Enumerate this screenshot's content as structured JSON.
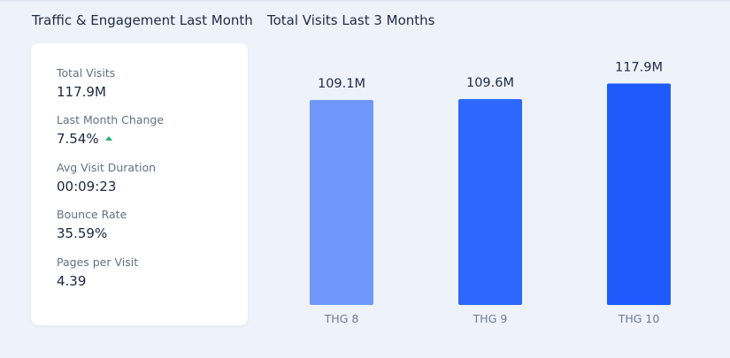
{
  "sections": {
    "left_title": "Traffic & Engagement Last Month",
    "right_title": "Total Visits Last 3 Months"
  },
  "metrics": [
    {
      "label": "Total Visits",
      "value": "117.9M"
    },
    {
      "label": "Last Month Change",
      "value": "7.54%",
      "trend": "up"
    },
    {
      "label": "Avg Visit Duration",
      "value": "00:09:23"
    },
    {
      "label": "Bounce Rate",
      "value": "35.59%"
    },
    {
      "label": "Pages per Visit",
      "value": "4.39"
    }
  ],
  "colors": {
    "page_background": "#eef2fa",
    "card_background": "#ffffff",
    "trend_up": "#1fb37c",
    "bar_light": "#7097fb",
    "bar_mid": "#2d67fb",
    "bar_dark": "#1e5afc"
  },
  "icons": {
    "trend": "caret-up-icon"
  },
  "chart_data": {
    "type": "bar",
    "title": "Total Visits Last 3 Months",
    "categories": [
      "THG 8",
      "THG 9",
      "THG 10"
    ],
    "values": [
      109.1,
      109.6,
      117.9
    ],
    "value_labels": [
      "109.1M",
      "109.6M",
      "117.9M"
    ],
    "unit": "M",
    "bar_colors": [
      "#7097fb",
      "#2d67fb",
      "#1e5afc"
    ],
    "ylim": [
      0,
      120
    ],
    "grid": false,
    "legend": false
  }
}
